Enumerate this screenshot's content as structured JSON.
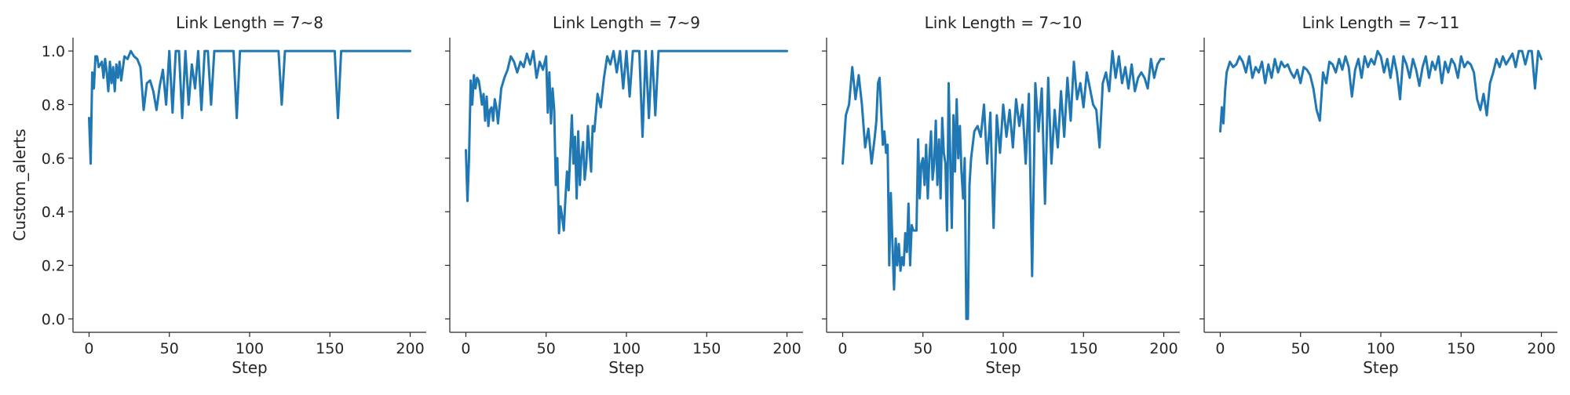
{
  "chart_data": {
    "type": "line",
    "ylabel": "Custom_alerts",
    "xlabel": "Step",
    "xlim": [
      -10,
      210
    ],
    "ylim": [
      -0.05,
      1.05
    ],
    "xticks": [
      0,
      50,
      100,
      150,
      200
    ],
    "yticks": [
      0.0,
      0.2,
      0.4,
      0.6,
      0.8,
      1.0
    ],
    "xtick_labels": [
      "0",
      "50",
      "100",
      "150",
      "200"
    ],
    "ytick_labels": [
      "0.0",
      "0.2",
      "0.4",
      "0.6",
      "0.8",
      "1.0"
    ],
    "line_color": "#1f77b4",
    "grid": false,
    "shared_y": true,
    "panels": [
      {
        "title": "Link Length = 7~8",
        "x": [
          0,
          1,
          2,
          3,
          4,
          5,
          6,
          7,
          8,
          9,
          10,
          11,
          12,
          13,
          14,
          15,
          16,
          17,
          18,
          19,
          20,
          22,
          24,
          26,
          28,
          30,
          32,
          34,
          36,
          38,
          40,
          42,
          44,
          46,
          48,
          50,
          52,
          54,
          56,
          58,
          60,
          62,
          64,
          66,
          68,
          70,
          72,
          74,
          76,
          78,
          80,
          85,
          90,
          92,
          94,
          100,
          110,
          118,
          120,
          122,
          130,
          140,
          150,
          153,
          155,
          157,
          160,
          170,
          180,
          190,
          200
        ],
        "y": [
          0.75,
          0.58,
          0.92,
          0.86,
          0.98,
          0.98,
          0.94,
          0.95,
          0.96,
          0.9,
          0.97,
          0.92,
          0.85,
          0.96,
          0.88,
          0.94,
          0.85,
          0.95,
          0.9,
          0.96,
          0.89,
          0.98,
          0.97,
          1.0,
          0.98,
          0.97,
          0.94,
          0.78,
          0.88,
          0.89,
          0.85,
          0.78,
          0.87,
          0.93,
          0.8,
          1.0,
          0.77,
          1.0,
          1.0,
          0.75,
          1.0,
          0.8,
          0.95,
          0.86,
          1.0,
          0.78,
          1.0,
          1.0,
          0.8,
          1.0,
          1.0,
          1.0,
          1.0,
          0.75,
          1.0,
          1.0,
          1.0,
          1.0,
          0.8,
          1.0,
          1.0,
          1.0,
          1.0,
          1.0,
          0.75,
          1.0,
          1.0,
          1.0,
          1.0,
          1.0,
          1.0
        ]
      },
      {
        "title": "Link Length = 7~9",
        "x": [
          0,
          1,
          2,
          3,
          4,
          5,
          6,
          7,
          8,
          9,
          10,
          11,
          12,
          13,
          14,
          15,
          16,
          17,
          18,
          19,
          20,
          22,
          24,
          26,
          28,
          30,
          32,
          34,
          36,
          38,
          40,
          42,
          44,
          46,
          48,
          50,
          51,
          52,
          53,
          54,
          55,
          56,
          57,
          58,
          59,
          60,
          61,
          62,
          63,
          64,
          65,
          66,
          67,
          68,
          69,
          70,
          71,
          72,
          73,
          74,
          75,
          76,
          77,
          78,
          79,
          80,
          82,
          84,
          86,
          88,
          90,
          92,
          94,
          96,
          98,
          100,
          102,
          104,
          106,
          108,
          110,
          112,
          114,
          116,
          118,
          120,
          122,
          124,
          130,
          140,
          150,
          160,
          170,
          180,
          190,
          200
        ],
        "y": [
          0.63,
          0.44,
          0.6,
          0.89,
          0.8,
          0.91,
          0.86,
          0.9,
          0.89,
          0.85,
          0.8,
          0.84,
          0.74,
          0.83,
          0.72,
          0.78,
          0.79,
          0.74,
          0.82,
          0.79,
          0.73,
          0.86,
          0.9,
          0.93,
          0.98,
          0.96,
          0.92,
          0.96,
          0.94,
          0.99,
          0.95,
          1.0,
          0.9,
          0.96,
          0.93,
          0.98,
          0.77,
          0.92,
          0.73,
          0.86,
          0.78,
          0.5,
          0.6,
          0.32,
          0.42,
          0.38,
          0.33,
          0.45,
          0.55,
          0.48,
          0.62,
          0.76,
          0.58,
          0.68,
          0.45,
          0.7,
          0.5,
          0.61,
          0.66,
          0.52,
          0.58,
          0.72,
          0.63,
          0.55,
          0.72,
          0.7,
          0.84,
          0.79,
          0.9,
          0.98,
          0.95,
          1.0,
          0.92,
          1.0,
          0.86,
          1.0,
          0.83,
          1.0,
          1.0,
          1.0,
          0.68,
          1.0,
          0.75,
          1.0,
          0.76,
          1.0,
          1.0,
          1.0,
          1.0,
          1.0,
          1.0,
          1.0,
          1.0,
          1.0,
          1.0,
          1.0
        ]
      },
      {
        "title": "Link Length = 7~10",
        "x": [
          0,
          2,
          4,
          6,
          8,
          10,
          12,
          14,
          16,
          18,
          20,
          21,
          22,
          23,
          24,
          25,
          26,
          27,
          28,
          29,
          30,
          31,
          32,
          33,
          34,
          35,
          36,
          37,
          38,
          39,
          40,
          41,
          42,
          43,
          44,
          45,
          46,
          47,
          48,
          49,
          50,
          51,
          52,
          53,
          54,
          55,
          56,
          57,
          58,
          59,
          60,
          61,
          62,
          63,
          64,
          65,
          66,
          67,
          68,
          69,
          70,
          71,
          72,
          73,
          74,
          75,
          76,
          77,
          78,
          79,
          80,
          82,
          84,
          86,
          88,
          90,
          92,
          94,
          96,
          98,
          100,
          102,
          104,
          106,
          108,
          110,
          112,
          114,
          116,
          118,
          120,
          122,
          124,
          126,
          128,
          130,
          132,
          134,
          136,
          138,
          140,
          142,
          144,
          146,
          148,
          150,
          152,
          154,
          156,
          158,
          160,
          162,
          164,
          166,
          168,
          170,
          172,
          174,
          176,
          178,
          180,
          182,
          184,
          186,
          188,
          190,
          192,
          194,
          196,
          198,
          200
        ],
        "y": [
          0.58,
          0.76,
          0.8,
          0.94,
          0.82,
          0.91,
          0.8,
          0.64,
          0.71,
          0.58,
          0.68,
          0.74,
          0.88,
          0.9,
          0.78,
          0.65,
          0.7,
          0.62,
          0.65,
          0.2,
          0.47,
          0.28,
          0.11,
          0.3,
          0.2,
          0.28,
          0.18,
          0.23,
          0.2,
          0.32,
          0.25,
          0.43,
          0.2,
          0.35,
          0.33,
          0.33,
          0.33,
          0.67,
          0.45,
          0.58,
          0.6,
          0.5,
          0.65,
          0.45,
          0.6,
          0.7,
          0.52,
          0.58,
          0.74,
          0.5,
          0.67,
          0.45,
          0.75,
          0.62,
          0.58,
          0.33,
          0.88,
          0.6,
          0.34,
          0.76,
          0.55,
          0.82,
          0.6,
          0.72,
          0.55,
          0.45,
          0.6,
          0.0,
          0.0,
          0.5,
          0.6,
          0.7,
          0.72,
          0.68,
          0.8,
          0.58,
          0.77,
          0.34,
          0.76,
          0.62,
          0.8,
          0.68,
          0.78,
          0.64,
          0.82,
          0.72,
          0.8,
          0.58,
          0.84,
          0.16,
          0.88,
          0.7,
          0.86,
          0.43,
          0.9,
          0.58,
          0.78,
          0.64,
          0.85,
          0.68,
          0.9,
          0.74,
          0.96,
          0.82,
          0.88,
          0.79,
          0.92,
          0.86,
          0.8,
          0.78,
          0.64,
          0.88,
          0.92,
          0.85,
          1.0,
          0.9,
          0.98,
          0.88,
          0.94,
          0.86,
          0.95,
          0.85,
          0.9,
          0.92,
          0.9,
          0.86,
          0.97,
          0.9,
          0.95,
          0.97,
          0.97
        ]
      },
      {
        "title": "Link Length = 7~11",
        "x": [
          0,
          1,
          2,
          3,
          4,
          6,
          8,
          10,
          12,
          14,
          16,
          18,
          20,
          22,
          24,
          26,
          28,
          30,
          32,
          34,
          36,
          38,
          40,
          42,
          44,
          46,
          48,
          50,
          52,
          54,
          56,
          58,
          60,
          62,
          64,
          66,
          68,
          70,
          72,
          74,
          76,
          78,
          80,
          82,
          84,
          86,
          88,
          90,
          92,
          94,
          96,
          98,
          100,
          102,
          104,
          106,
          108,
          110,
          112,
          114,
          116,
          118,
          120,
          122,
          124,
          126,
          128,
          130,
          132,
          134,
          136,
          138,
          140,
          142,
          144,
          146,
          148,
          150,
          152,
          154,
          156,
          158,
          160,
          162,
          164,
          166,
          168,
          170,
          172,
          174,
          176,
          178,
          180,
          182,
          184,
          186,
          188,
          190,
          192,
          194,
          196,
          198,
          200
        ],
        "y": [
          0.7,
          0.79,
          0.73,
          0.85,
          0.92,
          0.96,
          0.94,
          0.95,
          0.98,
          0.96,
          0.92,
          0.98,
          0.9,
          0.94,
          0.92,
          0.96,
          0.88,
          0.95,
          0.9,
          0.97,
          0.92,
          0.96,
          0.94,
          0.95,
          0.92,
          0.9,
          0.93,
          0.88,
          0.94,
          0.93,
          0.91,
          0.86,
          0.78,
          0.74,
          0.92,
          0.88,
          0.96,
          0.95,
          0.92,
          0.97,
          0.93,
          0.98,
          0.94,
          0.83,
          0.93,
          0.97,
          0.9,
          0.98,
          0.94,
          0.97,
          0.95,
          1.0,
          0.98,
          0.92,
          0.97,
          0.9,
          0.98,
          0.92,
          0.82,
          0.98,
          0.95,
          0.9,
          0.97,
          0.93,
          0.87,
          0.94,
          0.98,
          0.9,
          0.96,
          0.93,
          0.98,
          0.88,
          0.96,
          0.92,
          0.97,
          0.95,
          0.9,
          0.98,
          0.94,
          0.96,
          0.95,
          0.92,
          0.82,
          0.78,
          0.84,
          0.76,
          0.88,
          0.92,
          0.97,
          0.94,
          0.98,
          0.95,
          0.97,
          0.99,
          0.94,
          1.0,
          1.0,
          0.95,
          1.0,
          1.0,
          0.86,
          1.0,
          0.97
        ]
      }
    ]
  }
}
